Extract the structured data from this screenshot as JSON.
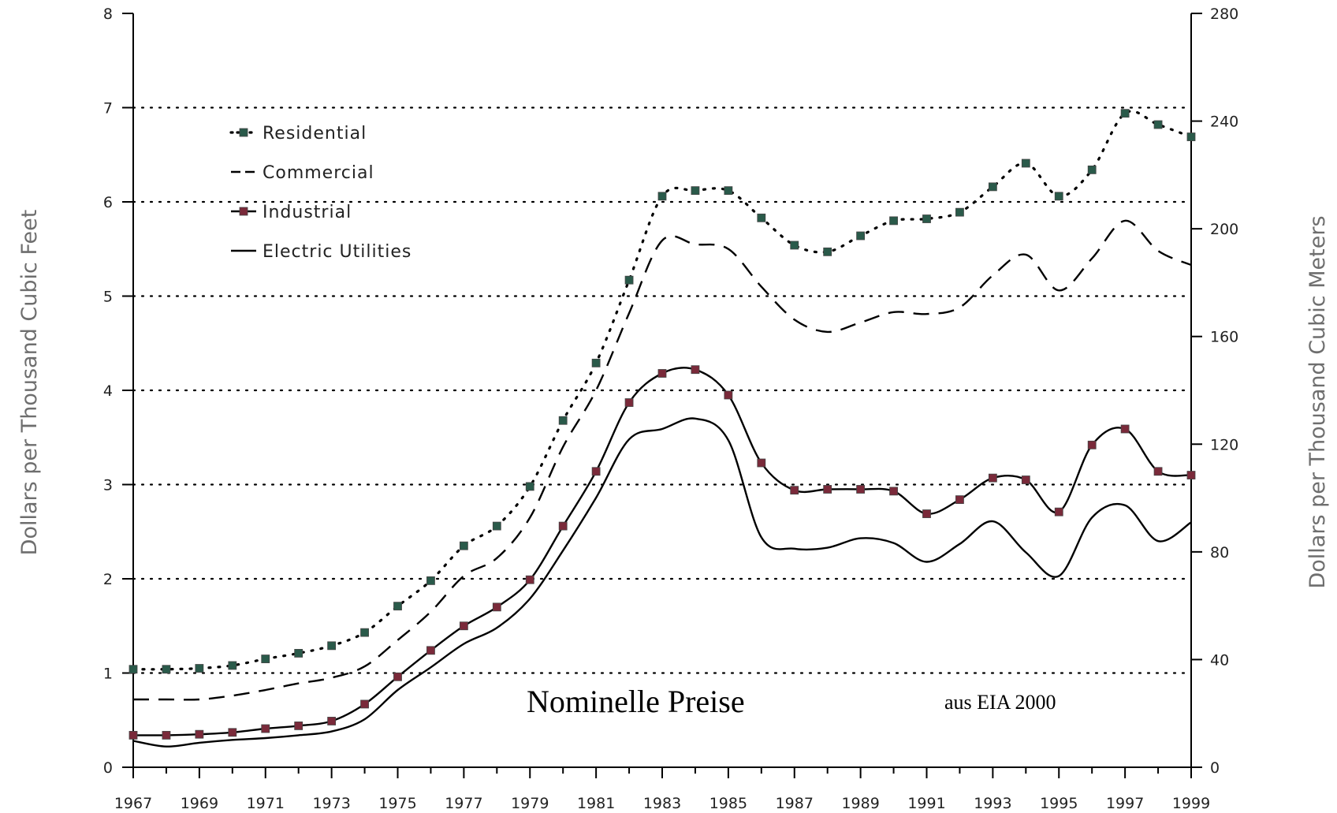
{
  "chart_data": {
    "type": "line",
    "title": "",
    "annotations": [
      {
        "text": "Nominelle Preise"
      },
      {
        "text": "aus EIA 2000"
      }
    ],
    "ylabel": "Dollars per Thousand Cubic Feet",
    "ylabel_right": "Dollars per Thousand Cubic Meters",
    "xlim": [
      1967,
      1999
    ],
    "ylim": [
      0,
      8
    ],
    "ylim_right": [
      0,
      280
    ],
    "x_ticks": [
      "1967",
      "1969",
      "1971",
      "1973",
      "1975",
      "1977",
      "1979",
      "1981",
      "1983",
      "1985",
      "1987",
      "1989",
      "1991",
      "1993",
      "1995",
      "1997",
      "1999"
    ],
    "y_ticks": [
      "0",
      "1",
      "2",
      "3",
      "4",
      "5",
      "6",
      "7",
      "8"
    ],
    "y_ticks_right": [
      "0",
      "40",
      "80",
      "120",
      "160",
      "200",
      "240",
      "280"
    ],
    "grid": "horizontal dotted at 1-7",
    "legend_position": "top-left",
    "x": [
      1967,
      1968,
      1969,
      1970,
      1971,
      1972,
      1973,
      1974,
      1975,
      1976,
      1977,
      1978,
      1979,
      1980,
      1981,
      1982,
      1983,
      1984,
      1985,
      1986,
      1987,
      1988,
      1989,
      1990,
      1991,
      1992,
      1993,
      1994,
      1995,
      1996,
      1997,
      1998,
      1999
    ],
    "series": [
      {
        "name": "Residential",
        "style": "dotted",
        "marker": "square",
        "color": "#2a5a4a",
        "values": [
          1.04,
          1.04,
          1.05,
          1.08,
          1.15,
          1.21,
          1.29,
          1.43,
          1.71,
          1.98,
          2.35,
          2.56,
          2.98,
          3.68,
          4.29,
          5.17,
          6.06,
          6.12,
          6.12,
          5.83,
          5.54,
          5.47,
          5.64,
          5.8,
          5.82,
          5.89,
          6.16,
          6.41,
          6.06,
          6.34,
          6.94,
          6.82,
          6.69
        ]
      },
      {
        "name": "Commercial",
        "style": "dashed",
        "marker": "none",
        "color": "#000000",
        "values": [
          0.72,
          0.72,
          0.72,
          0.76,
          0.82,
          0.89,
          0.95,
          1.07,
          1.35,
          1.65,
          2.03,
          2.22,
          2.65,
          3.4,
          4.0,
          4.82,
          5.59,
          5.55,
          5.5,
          5.1,
          4.75,
          4.62,
          4.72,
          4.83,
          4.81,
          4.88,
          5.22,
          5.44,
          5.06,
          5.4,
          5.8,
          5.48,
          5.33
        ]
      },
      {
        "name": "Industrial",
        "style": "solid",
        "marker": "square",
        "color": "#7a2a3a",
        "values": [
          0.34,
          0.34,
          0.35,
          0.37,
          0.41,
          0.44,
          0.49,
          0.67,
          0.96,
          1.24,
          1.5,
          1.7,
          1.99,
          2.56,
          3.14,
          3.87,
          4.18,
          4.22,
          3.95,
          3.23,
          2.94,
          2.95,
          2.95,
          2.93,
          2.69,
          2.84,
          3.07,
          3.05,
          2.71,
          3.42,
          3.59,
          3.14,
          3.1
        ]
      },
      {
        "name": "Electric Utilities",
        "style": "solid",
        "marker": "none",
        "color": "#000000",
        "values": [
          0.28,
          0.22,
          0.26,
          0.29,
          0.31,
          0.34,
          0.38,
          0.51,
          0.82,
          1.06,
          1.31,
          1.48,
          1.79,
          2.3,
          2.86,
          3.48,
          3.59,
          3.7,
          3.47,
          2.44,
          2.32,
          2.33,
          2.43,
          2.38,
          2.18,
          2.37,
          2.61,
          2.28,
          2.03,
          2.65,
          2.78,
          2.4,
          2.6
        ]
      }
    ]
  }
}
